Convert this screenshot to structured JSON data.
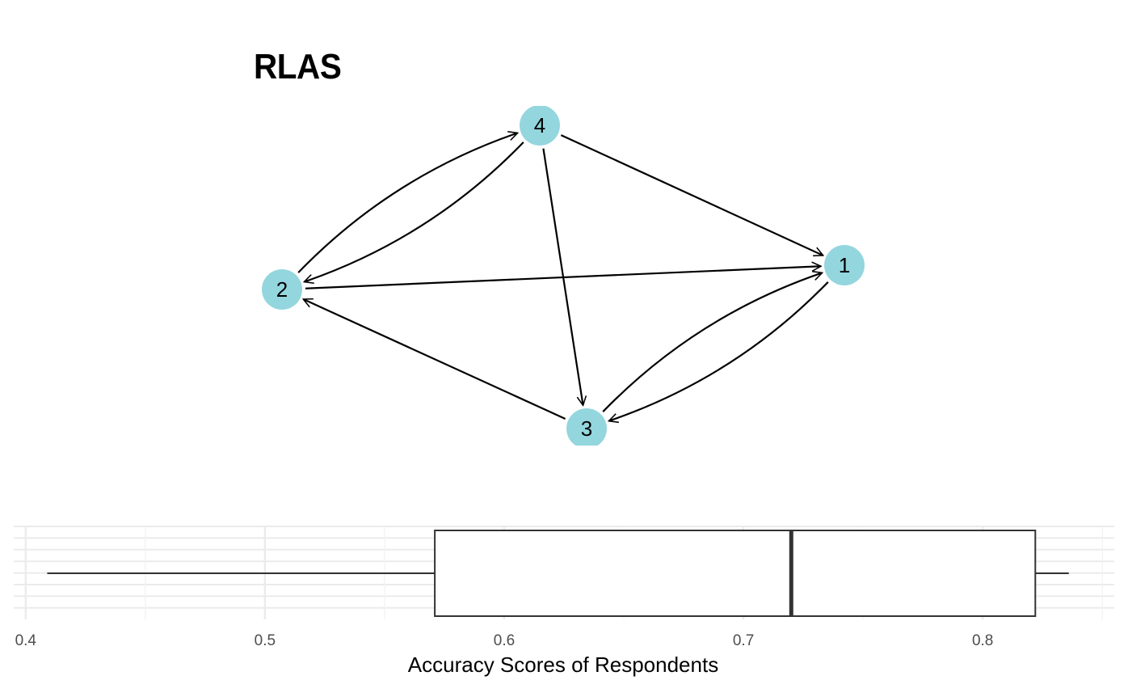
{
  "chart_data": [
    {
      "type": "network",
      "title": "RLAS",
      "node_color": "#94d6de",
      "edge_color": "#000000",
      "nodes": [
        {
          "id": "1",
          "label": "1"
        },
        {
          "id": "2",
          "label": "2"
        },
        {
          "id": "3",
          "label": "3"
        },
        {
          "id": "4",
          "label": "4"
        }
      ],
      "edges": [
        {
          "from": "4",
          "to": "2",
          "curved": true
        },
        {
          "from": "2",
          "to": "4",
          "curved": true
        },
        {
          "from": "4",
          "to": "1",
          "curved": false
        },
        {
          "from": "4",
          "to": "3",
          "curved": false
        },
        {
          "from": "2",
          "to": "1",
          "curved": false
        },
        {
          "from": "3",
          "to": "2",
          "curved": false
        },
        {
          "from": "1",
          "to": "3",
          "curved": true
        },
        {
          "from": "3",
          "to": "1",
          "curved": true
        }
      ]
    },
    {
      "type": "boxplot",
      "orientation": "horizontal",
      "xlabel": "Accuracy Scores of Respondents",
      "xlim": [
        0.395,
        0.855
      ],
      "xticks": [
        0.4,
        0.5,
        0.6,
        0.7,
        0.8
      ],
      "xtick_labels": [
        "0.4",
        "0.5",
        "0.6",
        "0.7",
        "0.8"
      ],
      "grid": true,
      "box": {
        "min": 0.409,
        "q1": 0.571,
        "median": 0.72,
        "q3": 0.822,
        "max": 0.836
      }
    }
  ]
}
